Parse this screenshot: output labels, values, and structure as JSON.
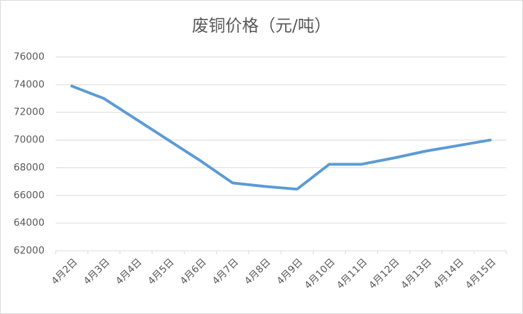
{
  "chart_data": {
    "type": "line",
    "title": "废铜价格（元/吨）",
    "categories": [
      "4月2日",
      "4月3日",
      "4月4日",
      "4月5日",
      "4月6日",
      "4月7日",
      "4月8日",
      "4月9日",
      "4月10日",
      "4月11日",
      "4月12日",
      "4月13日",
      "4月14日",
      "4月15日"
    ],
    "series": [
      {
        "name": "废铜价格",
        "color": "#5b9bd5",
        "values": [
          73900,
          73000,
          71500,
          70000,
          68500,
          66900,
          66650,
          66450,
          68250,
          68250,
          68700,
          69200,
          69600,
          70000
        ]
      }
    ],
    "ylim": [
      62000,
      76000
    ],
    "yticks": [
      62000,
      64000,
      66000,
      68000,
      70000,
      72000,
      74000,
      76000
    ],
    "grid": true
  }
}
